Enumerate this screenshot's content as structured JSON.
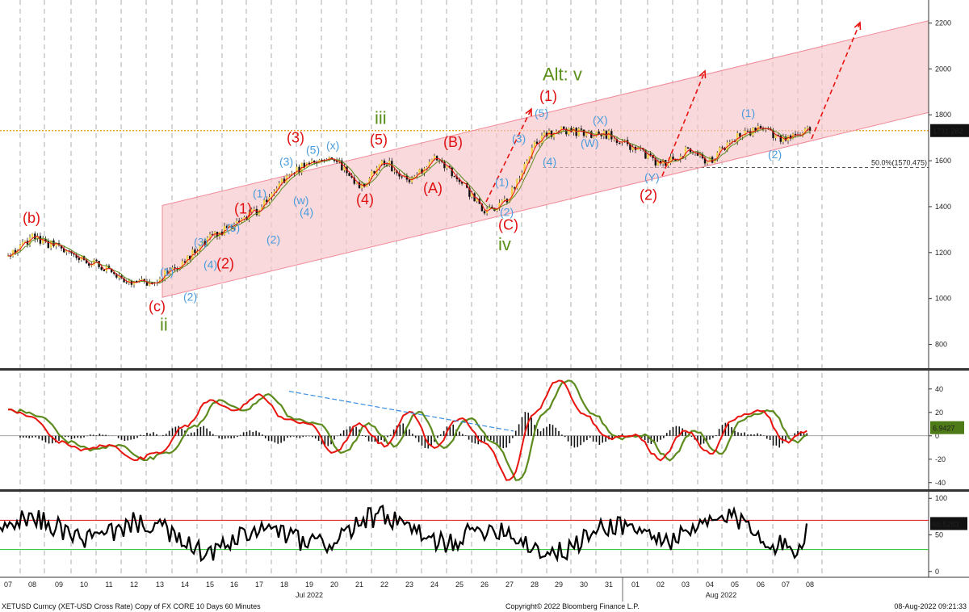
{
  "chart_data": [
    {
      "type": "line",
      "panel": "price",
      "series": [
        {
          "name": "",
          "x": [
            "07",
            "08",
            "09",
            "10",
            "11",
            "12",
            "13",
            "14",
            "15",
            "16",
            "17",
            "18",
            "19",
            "20",
            "21",
            "22",
            "23",
            "24",
            "25",
            "26",
            "27",
            "28",
            "29",
            "30",
            "31",
            "01",
            "02",
            "03",
            "04",
            "05",
            "06",
            "07",
            "08"
          ],
          "values": [
            1180,
            1270,
            1220,
            1170,
            1130,
            1060,
            1090,
            1170,
            1260,
            1320,
            1390,
            1520,
            1600,
            1610,
            1480,
            1600,
            1500,
            1620,
            1520,
            1370,
            1440,
            1680,
            1740,
            1720,
            1710,
            1650,
            1580,
            1640,
            1600,
            1700,
            1740,
            1690,
            1731.282
          ]
        }
      ],
      "ylim": [
        700,
        2300
      ],
      "yticks": [
        800,
        1000,
        1200,
        1400,
        1600,
        1800,
        2000,
        2200
      ],
      "last_value_label": "1731.282",
      "reference_levels": [
        {
          "label": "1731.282",
          "value": 1731.282,
          "color": "#e69500"
        },
        {
          "label": "50.0%(1570.475)",
          "value": 1570.475,
          "color": "#555555"
        }
      ],
      "channel": {
        "lower_start": 1005,
        "lower_end": 1810,
        "upper_start": 1405,
        "upper_end": 2210,
        "color": "#f7c5cb"
      },
      "wave_labels": [
        {
          "text": "(b)",
          "x": "08",
          "y": 1330,
          "color": "#e01010"
        },
        {
          "text": "(c)",
          "x": "13",
          "y": 945,
          "color": "#e01010"
        },
        {
          "text": "ii",
          "x": "13",
          "y": 860,
          "color": "#5a8f1a"
        },
        {
          "text": "(1)",
          "x": "13",
          "y": 1100,
          "color": "#4a9cdc"
        },
        {
          "text": "(2)",
          "x": "14",
          "y": 990,
          "color": "#4a9cdc"
        },
        {
          "text": "(3)",
          "x": "15",
          "y": 1230,
          "color": "#4a9cdc"
        },
        {
          "text": "(4)",
          "x": "15",
          "y": 1130,
          "color": "#4a9cdc"
        },
        {
          "text": "(5)",
          "x": "16",
          "y": 1290,
          "color": "#4a9cdc"
        },
        {
          "text": "(1)",
          "x": "16",
          "y": 1370,
          "color": "#e01010"
        },
        {
          "text": "(2)",
          "x": "16",
          "y": 1130,
          "color": "#e01010"
        },
        {
          "text": "(1)",
          "x": "17",
          "y": 1440,
          "color": "#4a9cdc"
        },
        {
          "text": "(2)",
          "x": "18",
          "y": 1240,
          "color": "#4a9cdc"
        },
        {
          "text": "(3)",
          "x": "18",
          "y": 1580,
          "color": "#4a9cdc"
        },
        {
          "text": "(4)",
          "x": "19",
          "y": 1360,
          "color": "#4a9cdc"
        },
        {
          "text": "(w)",
          "x": "19",
          "y": 1410,
          "color": "#4a9cdc"
        },
        {
          "text": "(5)",
          "x": "19",
          "y": 1630,
          "color": "#4a9cdc"
        },
        {
          "text": "(3)",
          "x": "19",
          "y": 1680,
          "color": "#e01010"
        },
        {
          "text": "(x)",
          "x": "20",
          "y": 1650,
          "color": "#4a9cdc"
        },
        {
          "text": "(4)",
          "x": "21",
          "y": 1410,
          "color": "#e01010"
        },
        {
          "text": "iii",
          "x": "22",
          "y": 1760,
          "color": "#5a8f1a"
        },
        {
          "text": "(5)",
          "x": "22",
          "y": 1670,
          "color": "#e01010"
        },
        {
          "text": "(A)",
          "x": "24",
          "y": 1460,
          "color": "#e01010"
        },
        {
          "text": "(B)",
          "x": "25",
          "y": 1660,
          "color": "#e01010"
        },
        {
          "text": "(C)",
          "x": "27",
          "y": 1300,
          "color": "#e01010"
        },
        {
          "text": "iv",
          "x": "27",
          "y": 1210,
          "color": "#5a8f1a"
        },
        {
          "text": "(1)",
          "x": "27",
          "y": 1490,
          "color": "#4a9cdc"
        },
        {
          "text": "(2)",
          "x": "27",
          "y": 1360,
          "color": "#4a9cdc"
        },
        {
          "text": "(3)",
          "x": "28",
          "y": 1680,
          "color": "#4a9cdc"
        },
        {
          "text": "(4)",
          "x": "29",
          "y": 1580,
          "color": "#4a9cdc"
        },
        {
          "text": "(5)",
          "x": "29",
          "y": 1790,
          "color": "#4a9cdc"
        },
        {
          "text": "(1)",
          "x": "29",
          "y": 1860,
          "color": "#e01010"
        },
        {
          "text": "Alt: v",
          "x": "29",
          "y": 1950,
          "color": "#5a8f1a"
        },
        {
          "text": "(W)",
          "x": "30",
          "y": 1660,
          "color": "#4a9cdc"
        },
        {
          "text": "(X)",
          "x": "31",
          "y": 1760,
          "color": "#4a9cdc"
        },
        {
          "text": "(Y)",
          "x": "02",
          "y": 1510,
          "color": "#4a9cdc"
        },
        {
          "text": "(2)",
          "x": "02",
          "y": 1430,
          "color": "#e01010"
        },
        {
          "text": "(1)",
          "x": "06",
          "y": 1790,
          "color": "#4a9cdc"
        },
        {
          "text": "(2)",
          "x": "07",
          "y": 1610,
          "color": "#4a9cdc"
        }
      ]
    },
    {
      "type": "line",
      "panel": "oscillator",
      "series": [
        {
          "name": "",
          "color": "#e8140f"
        },
        {
          "name": "",
          "color": "#5e8b1e"
        }
      ],
      "ylim": [
        -45,
        55
      ],
      "yticks": [
        -40,
        -20,
        0,
        20,
        40
      ],
      "last_value_label": "6.9427",
      "last_value": 6.9427
    },
    {
      "type": "line",
      "panel": "rsi",
      "series": [
        {
          "name": "",
          "color": "#000000"
        }
      ],
      "ylim": [
        -8,
        108
      ],
      "yticks": [
        0,
        50,
        100
      ],
      "levels": [
        {
          "value": 70,
          "color": "#e01010"
        },
        {
          "value": 30,
          "color": "#22c22a"
        }
      ],
      "last_value_label": "65.5283",
      "last_value": 65.5283
    }
  ],
  "x_axis": {
    "day_labels": [
      "07",
      "08",
      "09",
      "10",
      "11",
      "12",
      "13",
      "14",
      "15",
      "16",
      "17",
      "18",
      "19",
      "20",
      "21",
      "22",
      "23",
      "24",
      "25",
      "26",
      "27",
      "28",
      "29",
      "30",
      "31",
      "01",
      "02",
      "03",
      "04",
      "05",
      "06",
      "07",
      "08"
    ],
    "month_labels": [
      "Jul 2022",
      "Aug 2022"
    ]
  },
  "footer": {
    "left": "XETUSD Curncy (XET-USD Cross Rate) Copy of FX CORE 10 Days 60 Minutes",
    "center": "Copyright© 2022 Bloomberg Finance L.P.",
    "right": "08-Aug-2022 09:21:33"
  }
}
